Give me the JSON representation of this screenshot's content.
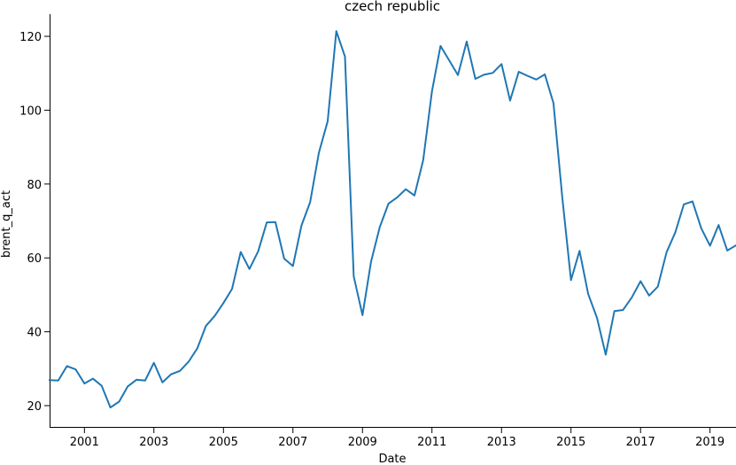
{
  "chart_data": {
    "type": "line",
    "title": "czech republic",
    "xlabel": "Date",
    "ylabel": "brent_q_act",
    "xlim": [
      "2000-01-01",
      "2019-10-01"
    ],
    "ylim": [
      14,
      126
    ],
    "x_ticks": [
      "2001",
      "2003",
      "2005",
      "2007",
      "2009",
      "2011",
      "2013",
      "2015",
      "2017",
      "2019"
    ],
    "y_ticks": [
      20,
      40,
      60,
      80,
      100,
      120
    ],
    "grid": false,
    "line_color": "#1f77b4",
    "series": [
      {
        "x": [
          "2000-01-01",
          "2000-04-01",
          "2000-07-01",
          "2000-10-01",
          "2001-01-01",
          "2001-04-01",
          "2001-07-01",
          "2001-10-01",
          "2002-01-01",
          "2002-04-01",
          "2002-07-01",
          "2002-10-01",
          "2003-01-01",
          "2003-04-01",
          "2003-07-01",
          "2003-10-01",
          "2004-01-01",
          "2004-04-01",
          "2004-07-01",
          "2004-10-01",
          "2005-01-01",
          "2005-04-01",
          "2005-07-01",
          "2005-10-01",
          "2006-01-01",
          "2006-04-01",
          "2006-07-01",
          "2006-10-01",
          "2007-01-01",
          "2007-04-01",
          "2007-07-01",
          "2007-10-01",
          "2008-01-01",
          "2008-04-01",
          "2008-07-01",
          "2008-10-01",
          "2009-01-01",
          "2009-04-01",
          "2009-07-01",
          "2009-10-01",
          "2010-01-01",
          "2010-04-01",
          "2010-07-01",
          "2010-10-01",
          "2011-01-01",
          "2011-04-01",
          "2011-07-01",
          "2011-10-01",
          "2012-01-01",
          "2012-04-01",
          "2012-07-01",
          "2012-10-01",
          "2013-01-01",
          "2013-04-01",
          "2013-07-01",
          "2013-10-01",
          "2014-01-01",
          "2014-04-01",
          "2014-07-01",
          "2014-10-01",
          "2015-01-01",
          "2015-04-01",
          "2015-07-01",
          "2015-10-01",
          "2016-01-01",
          "2016-04-01",
          "2016-07-01",
          "2016-10-01",
          "2017-01-01",
          "2017-04-01",
          "2017-07-01",
          "2017-10-01",
          "2018-01-01",
          "2018-04-01",
          "2018-07-01",
          "2018-10-01",
          "2019-01-01",
          "2019-04-01",
          "2019-07-01",
          "2019-10-01"
        ],
        "values": [
          26.9,
          26.8,
          30.7,
          29.8,
          26.0,
          27.3,
          25.4,
          19.5,
          21.1,
          25.2,
          27.0,
          26.8,
          31.6,
          26.3,
          28.5,
          29.4,
          31.9,
          35.5,
          41.6,
          44.3,
          47.8,
          51.6,
          61.6,
          57.0,
          61.8,
          69.6,
          69.7,
          59.8,
          57.8,
          68.8,
          75.1,
          88.5,
          97.0,
          121.4,
          114.5,
          55.0,
          44.5,
          59.0,
          68.3,
          74.7,
          76.4,
          78.6,
          76.9,
          86.5,
          105.1,
          117.4,
          113.5,
          109.5,
          118.6,
          108.5,
          109.6,
          110.1,
          112.5,
          102.6,
          110.4,
          109.3,
          108.3,
          109.7,
          101.9,
          76.5,
          54.0,
          61.9,
          50.2,
          43.8,
          33.8,
          45.6,
          45.9,
          49.3,
          53.7,
          49.8,
          52.2,
          61.5,
          66.9,
          74.5,
          75.3,
          68.0,
          63.3,
          68.9,
          62.0,
          63.4
        ]
      }
    ]
  }
}
